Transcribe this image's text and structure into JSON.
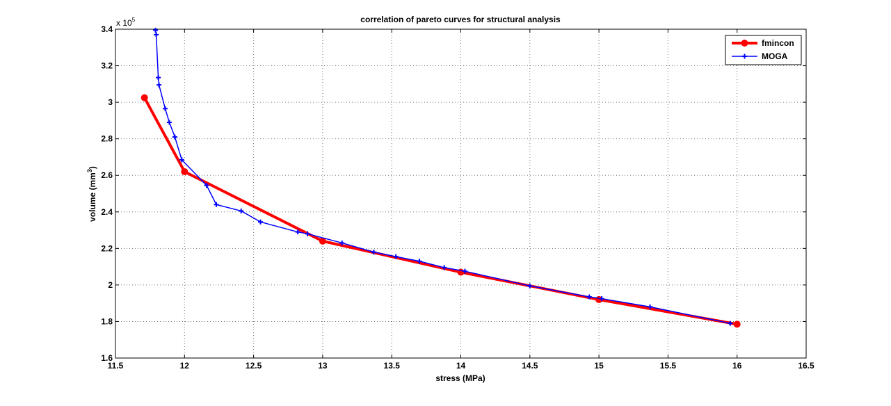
{
  "chart_data": {
    "type": "line",
    "title": "correlation of pareto curves for structural analysis",
    "xlabel": "stress (MPa)",
    "ylabel": "volume (mm",
    "ylabel_superscript": "3",
    "ylabel_suffix": ")",
    "y_exponent_label": "x 10",
    "y_exponent_power": "5",
    "xlim": [
      11.5,
      16.5
    ],
    "ylim": [
      1.6,
      3.4
    ],
    "y_scale_factor": 100000,
    "x_ticks": [
      11.5,
      12,
      12.5,
      13,
      13.5,
      14,
      14.5,
      15,
      15.5,
      16,
      16.5
    ],
    "x_tick_labels": [
      "11.5",
      "12",
      "12.5",
      "13",
      "13.5",
      "14",
      "14.5",
      "15",
      "15.5",
      "16",
      "16.5"
    ],
    "y_ticks": [
      1.6,
      1.8,
      2.0,
      2.2,
      2.4,
      2.6,
      2.8,
      3.0,
      3.2,
      3.4
    ],
    "y_tick_labels": [
      "1.6",
      "1.8",
      "2",
      "2.2",
      "2.4",
      "2.6",
      "2.8",
      "3",
      "3.2",
      "3.4"
    ],
    "grid": true,
    "legend_position": "top-right",
    "series": [
      {
        "name": "fmincon",
        "color": "#ff0000",
        "marker": "circle",
        "x": [
          11.71,
          12.0,
          13.0,
          14.0,
          15.0,
          16.0
        ],
        "y": [
          3.025,
          2.62,
          2.24,
          2.07,
          1.92,
          1.785
        ]
      },
      {
        "name": "MOGA",
        "color": "#0000ff",
        "marker": "plus",
        "x": [
          11.79,
          11.795,
          11.81,
          11.815,
          11.86,
          11.89,
          11.93,
          11.98,
          12.16,
          12.23,
          12.41,
          12.55,
          12.82,
          12.89,
          13.14,
          13.37,
          13.53,
          13.7,
          13.88,
          14.03,
          14.5,
          14.93,
          15.02,
          15.37,
          15.95
        ],
        "y": [
          3.395,
          3.37,
          3.135,
          3.095,
          2.965,
          2.89,
          2.81,
          2.685,
          2.545,
          2.44,
          2.405,
          2.345,
          2.29,
          2.28,
          2.23,
          2.18,
          2.155,
          2.13,
          2.095,
          2.075,
          1.995,
          1.935,
          1.925,
          1.88,
          1.79
        ]
      }
    ]
  }
}
